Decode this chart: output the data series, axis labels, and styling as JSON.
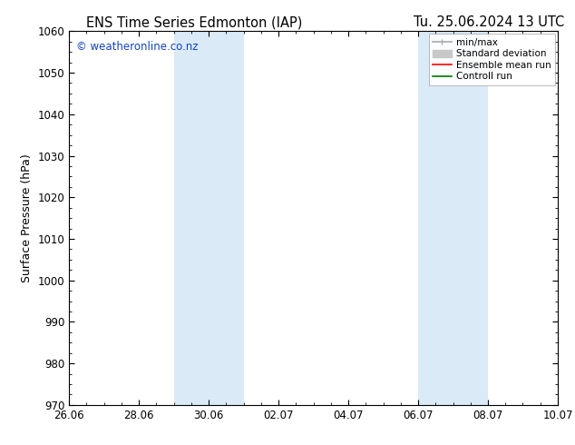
{
  "title_left": "ENS Time Series Edmonton (IAP)",
  "title_right": "Tu. 25.06.2024 13 UTC",
  "ylabel": "Surface Pressure (hPa)",
  "ylim": [
    970,
    1060
  ],
  "yticks": [
    970,
    980,
    990,
    1000,
    1010,
    1020,
    1030,
    1040,
    1050,
    1060
  ],
  "xtick_labels": [
    "26.06",
    "28.06",
    "30.06",
    "02.07",
    "04.07",
    "06.07",
    "08.07",
    "10.07"
  ],
  "xtick_positions_days": [
    0,
    2,
    4,
    6,
    8,
    10,
    12,
    14
  ],
  "shaded_regions": [
    {
      "start_day": 3.0,
      "end_day": 5.0
    },
    {
      "start_day": 10.0,
      "end_day": 12.0
    }
  ],
  "shaded_color": "#daeaf7",
  "background_color": "#ffffff",
  "watermark_text": "© weatheronline.co.nz",
  "watermark_color": "#1144bb",
  "legend_items": [
    {
      "label": "min/max",
      "color": "#aaaaaa",
      "lw": 1.2
    },
    {
      "label": "Standard deviation",
      "color": "#c8c8c8",
      "lw": 5
    },
    {
      "label": "Ensemble mean run",
      "color": "#ff0000",
      "lw": 1.2
    },
    {
      "label": "Controll run",
      "color": "#007700",
      "lw": 1.2
    }
  ],
  "title_fontsize": 10.5,
  "axis_label_fontsize": 9,
  "tick_fontsize": 8.5,
  "legend_fontsize": 7.5,
  "watermark_fontsize": 8.5,
  "xlim": [
    0,
    14
  ]
}
